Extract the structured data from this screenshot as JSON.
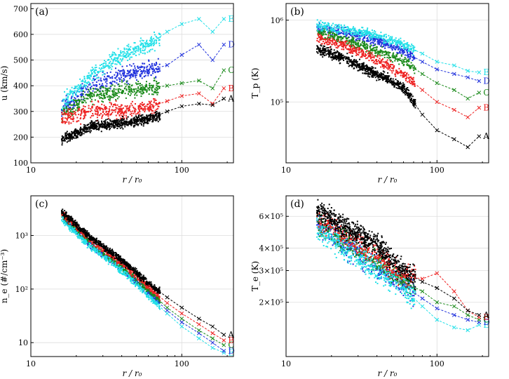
{
  "figure": {
    "series_colors": {
      "A": "#000000",
      "B": "#ee2222",
      "C": "#1a8a1a",
      "D": "#2233dd",
      "E": "#22e0e8"
    },
    "x_axis": {
      "label": "r / r₀",
      "scale": "log",
      "xlim": [
        10,
        220
      ],
      "tick_labels": [
        "10",
        "100"
      ]
    }
  },
  "chart_data": [
    {
      "panel": "(a)",
      "type": "scatter+line",
      "ylabel": "u (km/s)",
      "yscale": "linear",
      "ylim": [
        100,
        720
      ],
      "ytick_labels": [
        "100",
        "200",
        "300",
        "400",
        "500",
        "600",
        "700"
      ],
      "ytick_values": [
        100,
        200,
        300,
        400,
        500,
        600,
        700
      ],
      "x": [
        16,
        25,
        40,
        60,
        80,
        100,
        130,
        160,
        190
      ],
      "series": [
        {
          "name": "A",
          "values": [
            190,
            240,
            255,
            270,
            300,
            320,
            330,
            325,
            350
          ]
        },
        {
          "name": "B",
          "values": [
            270,
            300,
            305,
            315,
            340,
            360,
            370,
            330,
            390
          ]
        },
        {
          "name": "C",
          "values": [
            290,
            360,
            380,
            390,
            400,
            410,
            420,
            390,
            460
          ]
        },
        {
          "name": "D",
          "values": [
            310,
            400,
            440,
            460,
            480,
            520,
            560,
            500,
            560
          ]
        },
        {
          "name": "E",
          "values": [
            330,
            440,
            520,
            560,
            610,
            640,
            660,
            610,
            660
          ]
        }
      ]
    },
    {
      "panel": "(b)",
      "type": "scatter+line",
      "ylabel": "T_p (K)",
      "yscale": "log",
      "ylim": [
        18000,
        1600000
      ],
      "ytick_labels": [
        "10⁵",
        "10⁶"
      ],
      "ytick_values": [
        100000,
        1000000
      ],
      "x": [
        16,
        25,
        40,
        60,
        80,
        100,
        130,
        160,
        190
      ],
      "series": [
        {
          "name": "A",
          "values": [
            450000,
            330000,
            220000,
            150000,
            70000,
            45000,
            35000,
            28000,
            38000
          ]
        },
        {
          "name": "B",
          "values": [
            600000,
            480000,
            330000,
            220000,
            140000,
            100000,
            80000,
            65000,
            85000
          ]
        },
        {
          "name": "C",
          "values": [
            700000,
            580000,
            420000,
            320000,
            220000,
            170000,
            140000,
            110000,
            130000
          ]
        },
        {
          "name": "D",
          "values": [
            800000,
            700000,
            560000,
            420000,
            310000,
            250000,
            220000,
            200000,
            180000
          ]
        },
        {
          "name": "E",
          "values": [
            850000,
            780000,
            640000,
            500000,
            390000,
            310000,
            280000,
            240000,
            230000
          ]
        }
      ]
    },
    {
      "panel": "(c)",
      "type": "scatter+line",
      "ylabel": "n_e (#/cm⁻³)",
      "yscale": "log",
      "ylim": [
        5.5,
        5500
      ],
      "ytick_labels": [
        "10",
        "10²",
        "10³"
      ],
      "ytick_values": [
        10,
        100,
        1000
      ],
      "x": [
        16,
        25,
        40,
        60,
        80,
        100,
        130,
        160,
        190
      ],
      "series": [
        {
          "name": "A",
          "values": [
            2800,
            900,
            350,
            130,
            70,
            45,
            28,
            20,
            14
          ]
        },
        {
          "name": "B",
          "values": [
            2600,
            800,
            300,
            110,
            55,
            35,
            22,
            15,
            11
          ]
        },
        {
          "name": "C",
          "values": [
            2400,
            700,
            260,
            95,
            45,
            28,
            17,
            12,
            9
          ]
        },
        {
          "name": "D",
          "values": [
            2200,
            650,
            240,
            85,
            40,
            24,
            15,
            10,
            7
          ]
        },
        {
          "name": "E",
          "values": [
            2000,
            600,
            220,
            75,
            35,
            20,
            12,
            8,
            6.5
          ]
        }
      ]
    },
    {
      "panel": "(d)",
      "type": "scatter+line",
      "ylabel": "T_e (K)",
      "yscale": "log",
      "ylim": [
        100000,
        780000
      ],
      "ytick_labels": [
        "2×10⁵",
        "3×10⁵",
        "4×10⁵",
        "6×10⁵"
      ],
      "ytick_values": [
        200000,
        300000,
        400000,
        600000
      ],
      "x": [
        16,
        25,
        40,
        60,
        80,
        100,
        130,
        160,
        190
      ],
      "series": [
        {
          "name": "A",
          "values": [
            650000,
            520000,
            420000,
            300000,
            260000,
            240000,
            210000,
            180000,
            170000
          ]
        },
        {
          "name": "B",
          "values": [
            580000,
            460000,
            360000,
            280000,
            270000,
            290000,
            230000,
            180000,
            165000
          ]
        },
        {
          "name": "C",
          "values": [
            560000,
            430000,
            330000,
            260000,
            230000,
            200000,
            190000,
            170000,
            160000
          ]
        },
        {
          "name": "D",
          "values": [
            540000,
            410000,
            310000,
            250000,
            210000,
            185000,
            170000,
            160000,
            155000
          ]
        },
        {
          "name": "E",
          "values": [
            520000,
            390000,
            300000,
            240000,
            190000,
            160000,
            145000,
            140000,
            150000
          ]
        }
      ]
    }
  ]
}
